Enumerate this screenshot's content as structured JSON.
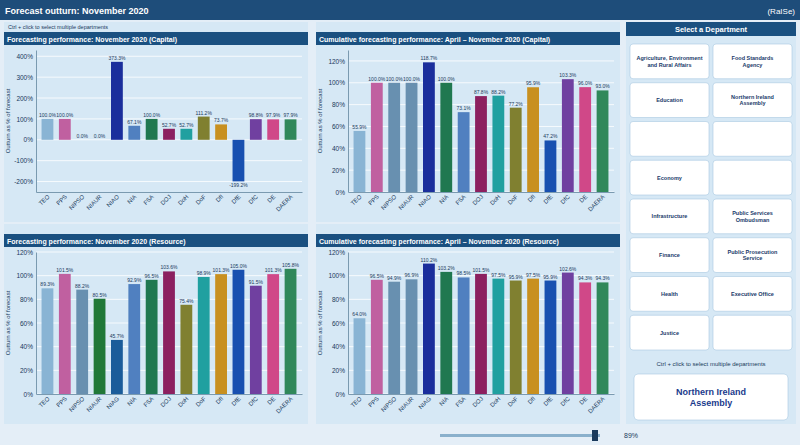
{
  "chart_data": [
    {
      "type": "bar",
      "title": "Forecasting performance: November 2020 (Capital)",
      "subtitle": "Ctrl + click to select multiple departments",
      "ylabel": "Outturn as % of forecast",
      "categories": [
        "TEO",
        "PPS",
        "NIPSO",
        "NIAUR",
        "NIAO",
        "NIA",
        "FSA",
        "DOJ",
        "DoH",
        "DoF",
        "DfI",
        "DfE",
        "DfC",
        "DE",
        "DAERA"
      ],
      "values": [
        100.0,
        100.0,
        0.0,
        0.0,
        373.3,
        67.1,
        100.0,
        52.7,
        52.7,
        111.2,
        73.7,
        -199.2,
        98.8,
        97.9,
        97.9
      ],
      "value_labels": [
        "100.0%",
        "100.0%",
        "0.0%",
        "0.0%",
        "373.3%",
        "67.1%",
        "100.0%",
        "52.7%",
        "52.7%",
        "111.2%",
        "73.7%",
        "-199.2%",
        "98.8%",
        "97.9%",
        "97.9%"
      ],
      "colors": [
        "#89b4d4",
        "#c060a0",
        "#6890b0",
        "#6890b0",
        "#1a2e9c",
        "#5080c0",
        "#207850",
        "#8c2060",
        "#20a0a0",
        "#808030",
        "#c89020",
        "#1850b0",
        "#7040a0",
        "#d04888",
        "#30885a"
      ],
      "ylim": [
        -250,
        430
      ],
      "yticks": [
        {
          "value": -200,
          "label": "-200%"
        },
        {
          "value": -100,
          "label": "-100%"
        },
        {
          "value": 0,
          "label": "0%"
        },
        {
          "value": 100,
          "label": "100%"
        },
        {
          "value": 200,
          "label": "200%"
        },
        {
          "value": 300,
          "label": "300%"
        },
        {
          "value": 400,
          "label": "400%"
        }
      ],
      "grid": true,
      "data_labels": true
    },
    {
      "type": "bar",
      "title": "Cumulative forecasting performance: April – November 2020 (Capital)",
      "ylabel": "Outturn as % of forecast",
      "categories": [
        "TEO",
        "PPS",
        "NIPSO",
        "NIAUR",
        "NIAO",
        "NIA",
        "FSA",
        "DOJ",
        "DoH",
        "DoF",
        "DfI",
        "DfE",
        "DfC",
        "DE",
        "DAERA"
      ],
      "values": [
        55.9,
        100.0,
        100.0,
        100.0,
        118.7,
        100.0,
        73.1,
        87.8,
        88.2,
        77.2,
        95.9,
        47.2,
        103.3,
        96.0,
        93.0
      ],
      "value_labels": [
        "55.9%",
        "100.0%",
        "100.0%",
        "100.0%",
        "118.7%",
        "100.0%",
        "73.1%",
        "87.8%",
        "88.2%",
        "77.2%",
        "95.9%",
        "47.2%",
        "103.3%",
        "96.0%",
        "93.0%"
      ],
      "colors": [
        "#89b4d4",
        "#c060a0",
        "#6890b0",
        "#6890b0",
        "#1a2e9c",
        "#207850",
        "#5080c0",
        "#8c2060",
        "#20a0a0",
        "#808030",
        "#c89020",
        "#1850b0",
        "#7040a0",
        "#d04888",
        "#30885a"
      ],
      "ylim": [
        0,
        130
      ],
      "yticks": [
        {
          "value": 0,
          "label": "0%"
        },
        {
          "value": 20,
          "label": "20%"
        },
        {
          "value": 40,
          "label": "40%"
        },
        {
          "value": 60,
          "label": "60%"
        },
        {
          "value": 80,
          "label": "80%"
        },
        {
          "value": 100,
          "label": "100%"
        },
        {
          "value": 120,
          "label": "120%"
        }
      ],
      "grid": true,
      "data_labels": true
    },
    {
      "type": "bar",
      "title": "Forecasting performance: November 2020 (Resource)",
      "ylabel": "Outturn as % of forecast",
      "categories": [
        "TEO",
        "PPS",
        "NIPSO",
        "NIAUR",
        "NIAG",
        "NIA",
        "FSA",
        "DOJ",
        "DoH",
        "DoF",
        "DfI",
        "DfE",
        "DfC",
        "DE",
        "DAERA"
      ],
      "values": [
        89.3,
        101.5,
        88.2,
        80.5,
        45.7,
        92.9,
        96.5,
        103.6,
        75.4,
        98.9,
        101.3,
        105.0,
        91.5,
        101.3,
        105.8
      ],
      "value_labels": [
        "89.3%",
        "101.5%",
        "88.2%",
        "80.5%",
        "45.7%",
        "92.9%",
        "96.5%",
        "103.6%",
        "75.4%",
        "98.9%",
        "101.3%",
        "105.0%",
        "91.5%",
        "101.3%",
        "105.8%"
      ],
      "colors": [
        "#89b4d4",
        "#c060a0",
        "#6890b0",
        "#207838",
        "#1a5c9a",
        "#5080c0",
        "#207850",
        "#8c2060",
        "#808030",
        "#20a0a0",
        "#c89020",
        "#1850b0",
        "#7040a0",
        "#d04888",
        "#30885a"
      ],
      "ylim": [
        0,
        120
      ],
      "yticks": [
        {
          "value": 0,
          "label": "0%"
        },
        {
          "value": 20,
          "label": "20%"
        },
        {
          "value": 40,
          "label": "40%"
        },
        {
          "value": 60,
          "label": "60%"
        },
        {
          "value": 80,
          "label": "80%"
        },
        {
          "value": 100,
          "label": "100%"
        },
        {
          "value": 120,
          "label": "120%"
        }
      ],
      "grid": true,
      "data_labels": true
    },
    {
      "type": "bar",
      "title": "Cumulative forecasting performance: April – November 2020 (Resource)",
      "ylabel": "Outturn as % of forecast",
      "categories": [
        "TEO",
        "PPS",
        "NIPSO",
        "NIAUR",
        "NIAG",
        "NIA",
        "FSA",
        "DOJ",
        "DoH",
        "DoF",
        "DfI",
        "DfE",
        "DfC",
        "DE",
        "DAERA"
      ],
      "values": [
        64.0,
        96.5,
        94.9,
        96.9,
        110.2,
        103.2,
        98.5,
        101.5,
        97.5,
        95.9,
        97.5,
        95.9,
        102.6,
        94.3,
        94.3
      ],
      "value_labels": [
        "64.0%",
        "96.5%",
        "94.9%",
        "96.9%",
        "110.2%",
        "103.2%",
        "98.5%",
        "101.5%",
        "97.5%",
        "95.9%",
        "97.5%",
        "95.9%",
        "102.6%",
        "94.3%",
        "94.3%"
      ],
      "colors": [
        "#89b4d4",
        "#c060a0",
        "#6890b0",
        "#6890b0",
        "#1a2e9c",
        "#207850",
        "#5080c0",
        "#8c2060",
        "#20a0a0",
        "#808030",
        "#c89020",
        "#1850b0",
        "#7040a0",
        "#d04888",
        "#30885a"
      ],
      "ylim": [
        0,
        120
      ],
      "yticks": [
        {
          "value": 0,
          "label": "0%"
        },
        {
          "value": 20,
          "label": "20%"
        },
        {
          "value": 40,
          "label": "40%"
        },
        {
          "value": 60,
          "label": "60%"
        },
        {
          "value": 80,
          "label": "80%"
        },
        {
          "value": 100,
          "label": "100%"
        },
        {
          "value": 120,
          "label": "120%"
        }
      ],
      "grid": true,
      "data_labels": true
    }
  ],
  "header": {
    "title": "Forecast outturn: November 2020",
    "right_text": "(RaISe)"
  },
  "department_panel": {
    "title": "Select a Department",
    "rows": [
      [
        "Agriculture, Environment\nand Rural Affairs",
        "Food Standards\nAgency"
      ],
      [
        "Education",
        "Northern Ireland\nAssembly"
      ],
      [
        null,
        null
      ],
      [
        "Economy",
        null
      ],
      [
        "Infrastructure",
        "Public Services\nOmbudsman"
      ],
      [
        "Finance",
        "Public Prosecution\nService"
      ],
      [
        "Health",
        "Executive Office"
      ],
      [
        "Justice",
        null
      ]
    ],
    "hint": "Ctrl + click to select multiple departments",
    "logo_text": "Northern Ireland\nAssembly"
  },
  "slider": {
    "label": "89%"
  }
}
